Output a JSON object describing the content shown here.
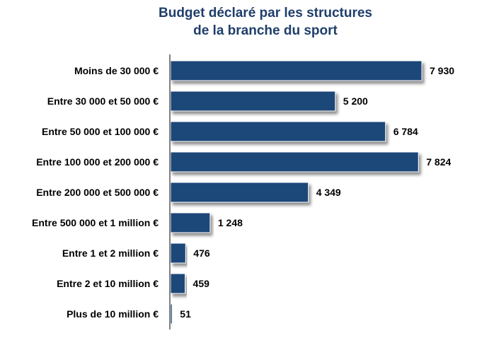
{
  "chart_data": {
    "type": "bar",
    "orientation": "horizontal",
    "title": "Budget déclaré par les structures de la branche du sport",
    "title_lines": [
      "Budget déclaré par les structures",
      "de la branche du sport"
    ],
    "categories": [
      "Moins de 30 000 €",
      "Entre 30 000 et 50 000 €",
      "Entre 50 000 et 100 000 €",
      "Entre 100 000 et 200 000 €",
      "Entre 200 000 et 500 000 €",
      "Entre 500 000 et 1 million €",
      "Entre 1 et 2 million €",
      "Entre 2 et 10 million €",
      "Plus de 10 million €"
    ],
    "values": [
      7930,
      5200,
      6784,
      7824,
      4349,
      1248,
      476,
      459,
      51
    ],
    "value_labels": [
      "7 930",
      "5 200",
      "6 784",
      "7 824",
      "4 349",
      "1 248",
      "476",
      "459",
      "51"
    ],
    "xlabel": "",
    "ylabel": "",
    "xlim": [
      0,
      7930
    ],
    "grid": false,
    "legend": "none",
    "bar_color": "#1f4679"
  }
}
